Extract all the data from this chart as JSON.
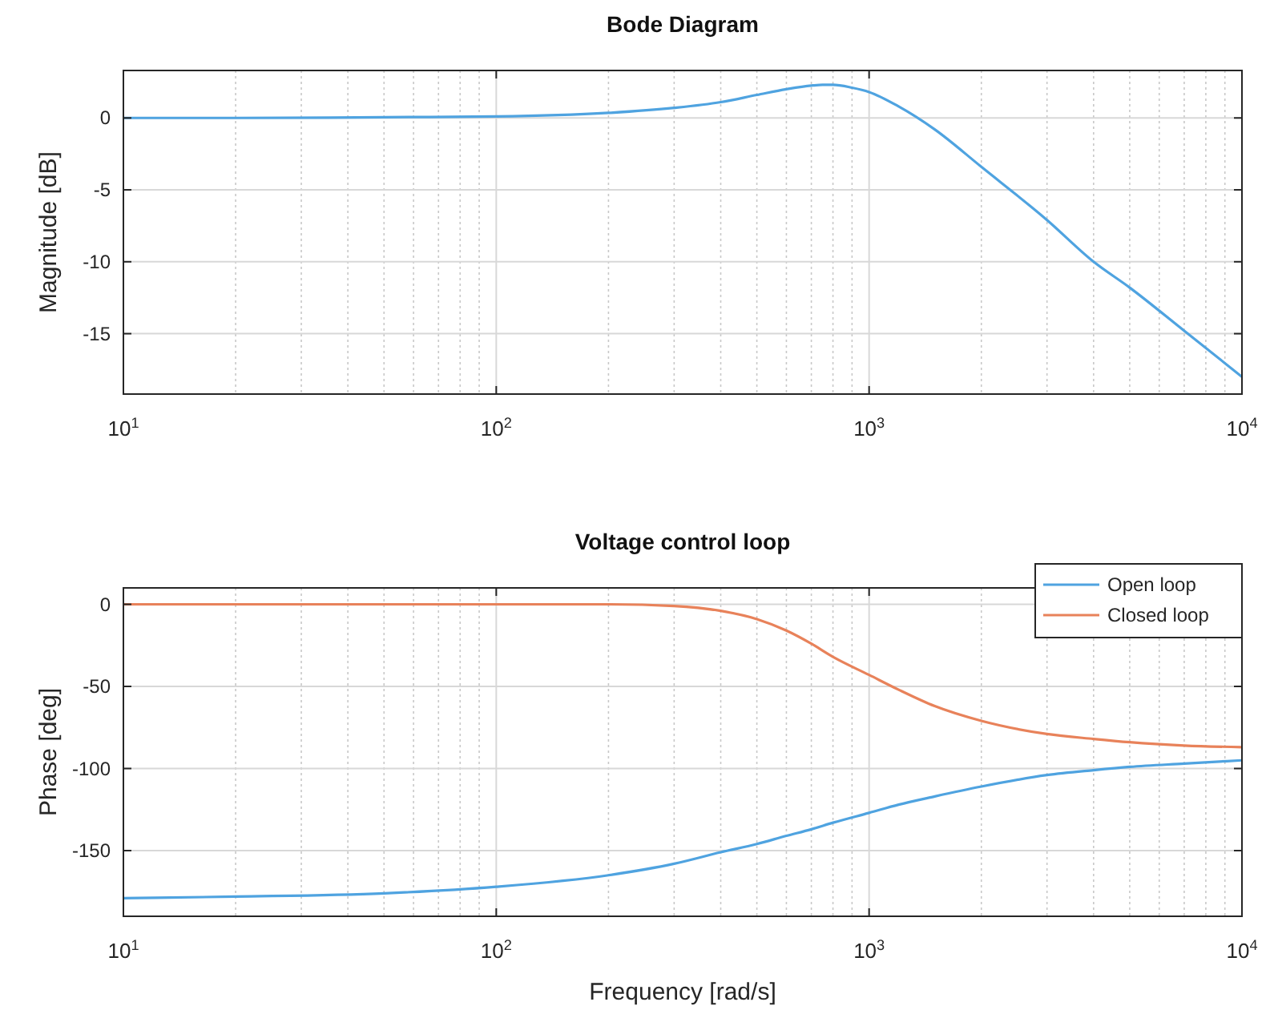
{
  "chart_data": [
    {
      "type": "line",
      "title": "Bode Diagram",
      "ylabel": "Magnitude [dB]",
      "log": "x",
      "grid": true,
      "legend": false,
      "xlim": [
        10,
        10000
      ],
      "xticks": [
        {
          "value": 10,
          "label": "10$^{1}$"
        },
        {
          "value": 100,
          "label": "10$^{2}$"
        },
        {
          "value": 1000,
          "label": "10$^{3}$"
        },
        {
          "value": 10000,
          "label": "10$^{4}$"
        }
      ],
      "ylim": [
        -19.2,
        3.3
      ],
      "yticks": [
        -15,
        -10,
        -5,
        0
      ],
      "x": [
        10,
        20,
        50,
        100,
        200,
        300,
        400,
        500,
        600,
        700,
        750,
        800,
        900,
        1000,
        1200,
        1500,
        2000,
        3000,
        4000,
        5000,
        7000,
        10000
      ],
      "series": [
        {
          "color": "#4fa3e0",
          "values": [
            0,
            0,
            0.05,
            0.1,
            0.35,
            0.7,
            1.1,
            1.6,
            2.0,
            2.25,
            2.3,
            2.3,
            2.1,
            1.8,
            0.8,
            -0.8,
            -3.4,
            -7.1,
            -10,
            -11.8,
            -14.8,
            -18
          ]
        }
      ]
    },
    {
      "type": "line",
      "title": "Voltage control loop",
      "xlabel": "Frequency [rad/s]",
      "ylabel": "Phase [deg]",
      "log": "x",
      "grid": true,
      "legend": "top right",
      "xlim": [
        10,
        10000
      ],
      "xticks": [
        {
          "value": 10,
          "label": "10$^{1}$"
        },
        {
          "value": 100,
          "label": "10$^{2}$"
        },
        {
          "value": 1000,
          "label": "10$^{3}$"
        },
        {
          "value": 10000,
          "label": "10$^{4}$"
        }
      ],
      "ylim": [
        -190,
        10
      ],
      "yticks": [
        -150,
        -100,
        -50,
        0
      ],
      "x": [
        10,
        20,
        50,
        100,
        200,
        300,
        400,
        500,
        600,
        700,
        800,
        1000,
        1200,
        1500,
        2000,
        3000,
        4000,
        5000,
        7000,
        10000
      ],
      "series": [
        {
          "name": "Open loop",
          "color": "#4fa3e0",
          "values": [
            -179,
            -178,
            -176,
            -172,
            -165,
            -158,
            -151,
            -146,
            -141,
            -137,
            -133,
            -127,
            -122,
            -117,
            -111,
            -104,
            -101,
            -99,
            -97,
            -95
          ]
        },
        {
          "name": "Closed loop",
          "color": "#e8825a",
          "values": [
            0,
            0,
            0,
            0,
            0,
            -1,
            -4,
            -9,
            -16,
            -24,
            -32,
            -43,
            -52,
            -62,
            -71,
            -79,
            -82,
            -84,
            -86,
            -87
          ]
        }
      ]
    }
  ]
}
